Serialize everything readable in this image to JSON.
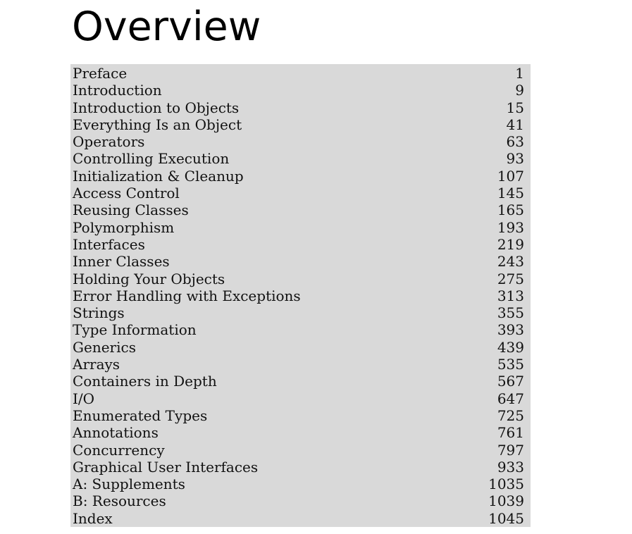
{
  "title": "Overview",
  "entries": [
    {
      "title": "Preface",
      "page": "1"
    },
    {
      "title": "Introduction",
      "page": "9"
    },
    {
      "title": "Introduction to Objects",
      "page": "15"
    },
    {
      "title": "Everything Is an Object",
      "page": "41"
    },
    {
      "title": "Operators",
      "page": "63"
    },
    {
      "title": "Controlling Execution",
      "page": "93"
    },
    {
      "title": "Initialization & Cleanup",
      "page": "107"
    },
    {
      "title": "Access Control",
      "page": "145"
    },
    {
      "title": "Reusing Classes",
      "page": "165"
    },
    {
      "title": "Polymorphism",
      "page": "193"
    },
    {
      "title": "Interfaces",
      "page": "219"
    },
    {
      "title": "Inner Classes",
      "page": "243"
    },
    {
      "title": "Holding Your Objects",
      "page": "275"
    },
    {
      "title": "Error Handling with Exceptions",
      "page": "313"
    },
    {
      "title": "Strings",
      "page": "355"
    },
    {
      "title": "Type Information",
      "page": "393"
    },
    {
      "title": "Generics",
      "page": "439"
    },
    {
      "title": "Arrays",
      "page": "535"
    },
    {
      "title": "Containers in Depth",
      "page": "567"
    },
    {
      "title": "I/O",
      "page": "647"
    },
    {
      "title": "Enumerated Types",
      "page": "725"
    },
    {
      "title": "Annotations",
      "page": "761"
    },
    {
      "title": "Concurrency",
      "page": "797"
    },
    {
      "title": "Graphical User Interfaces",
      "page": "933"
    },
    {
      "title": "A: Supplements",
      "page": "1035"
    },
    {
      "title": "B: Resources",
      "page": "1039"
    },
    {
      "title": "Index",
      "page": "1045"
    }
  ],
  "colors": {
    "table_background": "#d9d9d9",
    "text": "#111111"
  }
}
